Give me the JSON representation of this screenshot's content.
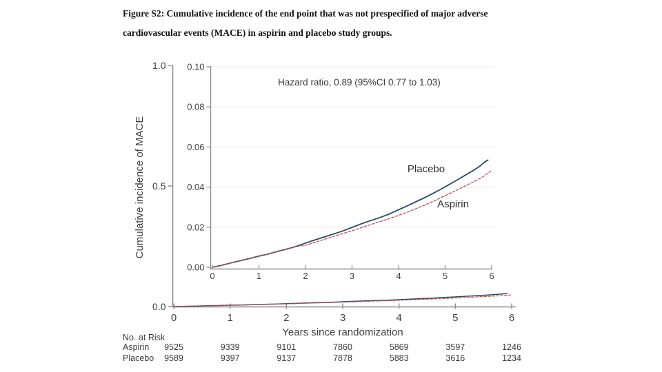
{
  "caption": {
    "line1": "Figure S2: Cumulative incidence of the end point that was not prespecified of major adverse",
    "line2": "cardiovascular events (MACE) in aspirin and placebo study groups."
  },
  "chart_data": {
    "type": "line",
    "annotation": "Hazard ratio, 0.89 (95%CI 0.77 to 1.03)",
    "xlabel": "Years since randomization",
    "ylabel": "Cumulative incidence of MACE",
    "outer_axis": {
      "xlim": [
        0,
        6
      ],
      "xticks": [
        0,
        1,
        2,
        3,
        4,
        5,
        6
      ],
      "xtick_labels": [
        "0",
        "1",
        "2",
        "3",
        "4",
        "5",
        "6"
      ],
      "ylim": [
        0.0,
        1.0
      ],
      "yticks": [
        0.0,
        0.5,
        1.0
      ],
      "ytick_labels": [
        "0.0",
        "0.5",
        "1.0"
      ],
      "grid": false
    },
    "inset_axis": {
      "xlim": [
        0,
        6
      ],
      "xticks": [
        0,
        1,
        2,
        3,
        4,
        5,
        6
      ],
      "xtick_labels": [
        "0",
        "1",
        "2",
        "3",
        "4",
        "5",
        "6"
      ],
      "ylim": [
        0.0,
        0.1
      ],
      "yticks": [
        0.0,
        0.02,
        0.04,
        0.06,
        0.08,
        0.1
      ],
      "ytick_labels": [
        "0.00",
        "0.02",
        "0.04",
        "0.06",
        "0.08",
        "0.10"
      ],
      "grid": true
    },
    "series": [
      {
        "name": "Placebo",
        "color": "#27496d",
        "style": "solid",
        "points": [
          [
            0,
            0
          ],
          [
            0.2,
            0.001
          ],
          [
            0.4,
            0.0022
          ],
          [
            0.6,
            0.0033
          ],
          [
            0.8,
            0.0044
          ],
          [
            1,
            0.0056
          ],
          [
            1.2,
            0.0066
          ],
          [
            1.4,
            0.0079
          ],
          [
            1.6,
            0.0091
          ],
          [
            1.8,
            0.0104
          ],
          [
            2,
            0.0121
          ],
          [
            2.2,
            0.0136
          ],
          [
            2.4,
            0.0151
          ],
          [
            2.6,
            0.0166
          ],
          [
            2.8,
            0.0181
          ],
          [
            3,
            0.0199
          ],
          [
            3.2,
            0.0217
          ],
          [
            3.4,
            0.0233
          ],
          [
            3.6,
            0.0248
          ],
          [
            3.8,
            0.0266
          ],
          [
            4,
            0.0287
          ],
          [
            4.2,
            0.0308
          ],
          [
            4.4,
            0.033
          ],
          [
            4.6,
            0.0352
          ],
          [
            4.8,
            0.0376
          ],
          [
            5,
            0.0401
          ],
          [
            5.2,
            0.0428
          ],
          [
            5.4,
            0.0455
          ],
          [
            5.6,
            0.0482
          ],
          [
            5.75,
            0.0505
          ],
          [
            5.85,
            0.0525
          ],
          [
            5.92,
            0.0535
          ]
        ]
      },
      {
        "name": "Aspirin",
        "color": "#b8524e",
        "style": "dashed",
        "points": [
          [
            0,
            0
          ],
          [
            0.2,
            0.001
          ],
          [
            0.4,
            0.0022
          ],
          [
            0.6,
            0.0034
          ],
          [
            0.8,
            0.0045
          ],
          [
            1,
            0.0057
          ],
          [
            1.2,
            0.0067
          ],
          [
            1.4,
            0.008
          ],
          [
            1.6,
            0.0092
          ],
          [
            1.8,
            0.0103
          ],
          [
            2,
            0.011
          ],
          [
            2.2,
            0.0124
          ],
          [
            2.4,
            0.0139
          ],
          [
            2.6,
            0.0154
          ],
          [
            2.8,
            0.0168
          ],
          [
            3,
            0.0182
          ],
          [
            3.2,
            0.0198
          ],
          [
            3.4,
            0.0213
          ],
          [
            3.6,
            0.0228
          ],
          [
            3.8,
            0.0243
          ],
          [
            4,
            0.0259
          ],
          [
            4.2,
            0.0276
          ],
          [
            4.4,
            0.0295
          ],
          [
            4.6,
            0.0314
          ],
          [
            4.8,
            0.0335
          ],
          [
            5,
            0.0357
          ],
          [
            5.2,
            0.0379
          ],
          [
            5.4,
            0.0402
          ],
          [
            5.6,
            0.0425
          ],
          [
            5.8,
            0.045
          ],
          [
            5.98,
            0.048
          ]
        ]
      }
    ],
    "risk_table": {
      "header": "No. at Risk",
      "rows": [
        {
          "label": "Aspirin",
          "values": [
            "9525",
            "9339",
            "9101",
            "7860",
            "5869",
            "3597",
            "1246"
          ]
        },
        {
          "label": "Placebo",
          "values": [
            "9589",
            "9397",
            "9137",
            "7878",
            "5883",
            "3616",
            "1234"
          ]
        }
      ]
    },
    "colors": {
      "axis": "#8c8c8c",
      "grid": "#eaeaea",
      "tick_text": "#3f3f3f",
      "placebo_line": "#27496d",
      "aspirin_line": "#b8524e"
    }
  }
}
